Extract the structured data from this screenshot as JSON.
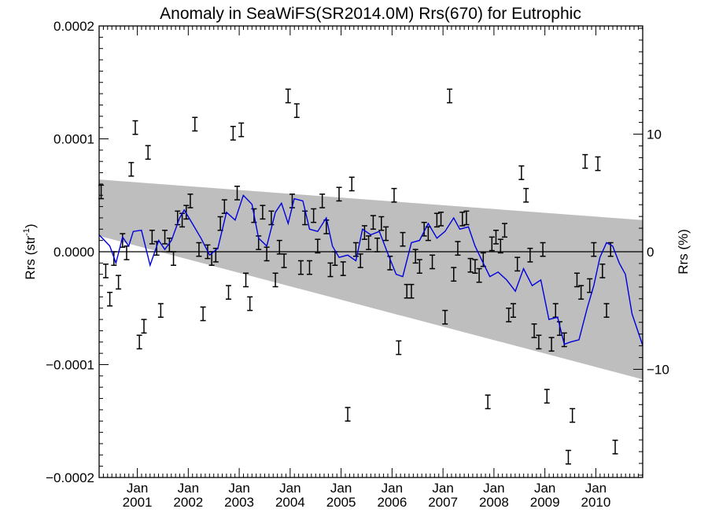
{
  "chart_data": {
    "type": "scatter",
    "title": "Anomaly in SeaWiFS(SR2014.0M) Rrs(670) for Eutrophic",
    "ylabel_left": {
      "base": "Rrs (str",
      "sup": "-1",
      "close": ")"
    },
    "ylabel_right": "Rrs (%)",
    "xlim": [
      2000.25,
      2010.92
    ],
    "ylim": [
      -0.0002,
      0.0002
    ],
    "right_ylim": [
      -19.2,
      19.2
    ],
    "x_ticks": [
      {
        "value": 2001.0,
        "month": "Jan",
        "year": "2001"
      },
      {
        "value": 2002.0,
        "month": "Jan",
        "year": "2002"
      },
      {
        "value": 2003.0,
        "month": "Jan",
        "year": "2003"
      },
      {
        "value": 2004.0,
        "month": "Jan",
        "year": "2004"
      },
      {
        "value": 2005.0,
        "month": "Jan",
        "year": "2005"
      },
      {
        "value": 2006.0,
        "month": "Jan",
        "year": "2006"
      },
      {
        "value": 2007.0,
        "month": "Jan",
        "year": "2007"
      },
      {
        "value": 2008.0,
        "month": "Jan",
        "year": "2008"
      },
      {
        "value": 2009.0,
        "month": "Jan",
        "year": "2009"
      },
      {
        "value": 2010.0,
        "month": "Jan",
        "year": "2010"
      }
    ],
    "y_ticks_left": [
      {
        "value": 0.0002,
        "label": "0.0002"
      },
      {
        "value": 0.0001,
        "label": "0.0001"
      },
      {
        "value": 0.0,
        "label": "0.0000"
      },
      {
        "value": -0.0001,
        "label": "−0.0001"
      },
      {
        "value": -0.0002,
        "label": "−0.0002"
      }
    ],
    "y_ticks_right": [
      {
        "value": 10,
        "label": "10"
      },
      {
        "value": 0,
        "label": "0"
      },
      {
        "value": -10,
        "label": "−10"
      }
    ],
    "zero_line": 0.0,
    "uncertainty_band": {
      "color": "#bebebe",
      "upper": [
        [
          2000.25,
          6.4e-05
        ],
        [
          2010.92,
          2.8e-05
        ]
      ],
      "lower": [
        [
          2000.25,
          1.4e-05
        ],
        [
          2010.92,
          -0.000113
        ]
      ]
    },
    "series": [
      {
        "type": "errorbar",
        "color": "#000000",
        "err": 6e-06,
        "points": [
          [
            2000.29,
            5.3e-05
          ],
          [
            2000.38,
            -1.7e-05
          ],
          [
            2000.46,
            -4.2e-05
          ],
          [
            2000.54,
            -6e-06
          ],
          [
            2000.63,
            -2.7e-05
          ],
          [
            2000.71,
            1e-05
          ],
          [
            2000.79,
            -1e-06
          ],
          [
            2000.88,
            7.3e-05
          ],
          [
            2000.96,
            0.00011
          ],
          [
            2001.04,
            -8e-05
          ],
          [
            2001.13,
            -6.6e-05
          ],
          [
            2001.21,
            8.8e-05
          ],
          [
            2001.29,
            1.3e-05
          ],
          [
            2001.38,
            3e-06
          ],
          [
            2001.46,
            -5.2e-05
          ],
          [
            2001.54,
            1.3e-05
          ],
          [
            2001.63,
            6e-06
          ],
          [
            2001.71,
            -6e-06
          ],
          [
            2001.79,
            3e-05
          ],
          [
            2001.88,
            2.8e-05
          ],
          [
            2001.96,
            3.5e-05
          ],
          [
            2002.04,
            4.5e-05
          ],
          [
            2002.13,
            0.000113
          ],
          [
            2002.21,
            2e-06
          ],
          [
            2002.29,
            -5.5e-05
          ],
          [
            2002.38,
            0.0
          ],
          [
            2002.46,
            -6e-06
          ],
          [
            2002.54,
            -3e-06
          ],
          [
            2002.63,
            2.5e-05
          ],
          [
            2002.71,
            4e-05
          ],
          [
            2002.79,
            -3.6e-05
          ],
          [
            2002.88,
            0.000105
          ],
          [
            2002.96,
            5.2e-05
          ],
          [
            2003.04,
            0.000108
          ],
          [
            2003.13,
            -2.5e-05
          ],
          [
            2003.21,
            -4.6e-05
          ],
          [
            2003.29,
            3.2e-05
          ],
          [
            2003.38,
            8e-06
          ],
          [
            2003.46,
            3.5e-05
          ],
          [
            2003.54,
            -2e-06
          ],
          [
            2003.63,
            3e-05
          ],
          [
            2003.71,
            -2.5e-05
          ],
          [
            2003.79,
            4e-06
          ],
          [
            2003.88,
            -8e-06
          ],
          [
            2003.96,
            0.000138
          ],
          [
            2004.04,
            4.5e-05
          ],
          [
            2004.13,
            0.000125
          ],
          [
            2004.21,
            -1.4e-05
          ],
          [
            2004.29,
            3e-05
          ],
          [
            2004.38,
            -1.4e-05
          ],
          [
            2004.46,
            3.2e-05
          ],
          [
            2004.54,
            5e-06
          ],
          [
            2004.63,
            4.5e-05
          ],
          [
            2004.71,
            2.2e-05
          ],
          [
            2004.79,
            -1.6e-05
          ],
          [
            2004.88,
            -6e-06
          ],
          [
            2004.96,
            5.1e-05
          ],
          [
            2005.04,
            -1.5e-05
          ],
          [
            2005.13,
            -0.000144
          ],
          [
            2005.21,
            6e-05
          ],
          [
            2005.29,
            2e-06
          ],
          [
            2005.38,
            -8e-06
          ],
          [
            2005.46,
            1.7e-05
          ],
          [
            2005.54,
            8e-06
          ],
          [
            2005.63,
            2.6e-05
          ],
          [
            2005.71,
            6e-06
          ],
          [
            2005.79,
            2.5e-05
          ],
          [
            2005.88,
            1.6e-05
          ],
          [
            2005.96,
            -1e-05
          ],
          [
            2006.04,
            5e-05
          ],
          [
            2006.13,
            -8.5e-05
          ],
          [
            2006.21,
            1.1e-05
          ],
          [
            2006.29,
            -3.5e-05
          ],
          [
            2006.38,
            -3.5e-05
          ],
          [
            2006.46,
            -4e-06
          ],
          [
            2006.54,
            -1.3e-05
          ],
          [
            2006.63,
            2e-05
          ],
          [
            2006.71,
            1.6e-05
          ],
          [
            2006.79,
            -9e-06
          ],
          [
            2006.88,
            2.8e-05
          ],
          [
            2006.96,
            2.9e-05
          ],
          [
            2007.04,
            -5.8e-05
          ],
          [
            2007.13,
            0.000138
          ],
          [
            2007.21,
            -2e-05
          ],
          [
            2007.29,
            3e-06
          ],
          [
            2007.38,
            2.9e-05
          ],
          [
            2007.46,
            3e-05
          ],
          [
            2007.54,
            -1.2e-05
          ],
          [
            2007.63,
            -1.3e-05
          ],
          [
            2007.71,
            -2.1e-05
          ],
          [
            2007.79,
            -7e-06
          ],
          [
            2007.88,
            -0.000133
          ],
          [
            2007.96,
            7e-06
          ],
          [
            2008.04,
            1.3e-05
          ],
          [
            2008.13,
            5e-06
          ],
          [
            2008.21,
            1.9e-05
          ],
          [
            2008.29,
            -5.6e-05
          ],
          [
            2008.38,
            -5.2e-05
          ],
          [
            2008.46,
            -1.1e-05
          ],
          [
            2008.54,
            7e-05
          ],
          [
            2008.63,
            5e-05
          ],
          [
            2008.71,
            -3e-06
          ],
          [
            2008.79,
            -7e-05
          ],
          [
            2008.88,
            -8e-05
          ],
          [
            2008.96,
            2e-06
          ],
          [
            2009.04,
            -0.000128
          ],
          [
            2009.13,
            -8.2e-05
          ],
          [
            2009.21,
            -5.2e-05
          ],
          [
            2009.29,
            -6.8e-05
          ],
          [
            2009.38,
            -7.8e-05
          ],
          [
            2009.46,
            -0.000182
          ],
          [
            2009.54,
            -0.000145
          ],
          [
            2009.63,
            -2.5e-05
          ],
          [
            2009.71,
            -3.6e-05
          ],
          [
            2009.79,
            8e-05
          ],
          [
            2009.88,
            -3e-05
          ],
          [
            2009.96,
            2e-06
          ],
          [
            2010.04,
            7.8e-05
          ],
          [
            2010.13,
            -1.7e-05
          ],
          [
            2010.21,
            -5.2e-05
          ],
          [
            2010.29,
            2e-06
          ],
          [
            2010.38,
            -0.000173
          ]
        ]
      },
      {
        "type": "line",
        "color": "#0000dd",
        "points": [
          [
            2000.25,
            1.5e-05
          ],
          [
            2000.46,
            5e-06
          ],
          [
            2000.58,
            -1e-05
          ],
          [
            2000.71,
            1.3e-05
          ],
          [
            2000.83,
            5e-06
          ],
          [
            2000.92,
            1.8e-05
          ],
          [
            2001.08,
            1.9e-05
          ],
          [
            2001.25,
            -1.2e-05
          ],
          [
            2001.42,
            1e-05
          ],
          [
            2001.54,
            2e-06
          ],
          [
            2001.67,
            1e-05
          ],
          [
            2001.83,
            3e-05
          ],
          [
            2001.92,
            3.7e-05
          ],
          [
            2002.08,
            2.5e-05
          ],
          [
            2002.25,
            1.2e-05
          ],
          [
            2002.42,
            -3e-06
          ],
          [
            2002.58,
            3e-06
          ],
          [
            2002.75,
            3.5e-05
          ],
          [
            2002.92,
            2.8e-05
          ],
          [
            2003.08,
            5e-05
          ],
          [
            2003.25,
            4.2e-05
          ],
          [
            2003.38,
            1.2e-05
          ],
          [
            2003.54,
            5e-06
          ],
          [
            2003.71,
            3.5e-05
          ],
          [
            2003.83,
            4.3e-05
          ],
          [
            2003.96,
            2.5e-05
          ],
          [
            2004.08,
            4.7e-05
          ],
          [
            2004.25,
            4.5e-05
          ],
          [
            2004.38,
            2e-05
          ],
          [
            2004.54,
            1.8e-05
          ],
          [
            2004.71,
            3e-05
          ],
          [
            2004.83,
            5e-06
          ],
          [
            2004.96,
            -5e-06
          ],
          [
            2005.13,
            -3e-06
          ],
          [
            2005.29,
            -8e-06
          ],
          [
            2005.42,
            2e-05
          ],
          [
            2005.58,
            1.5e-05
          ],
          [
            2005.75,
            1.8e-05
          ],
          [
            2005.92,
            -2e-06
          ],
          [
            2006.08,
            -2e-05
          ],
          [
            2006.21,
            -2.2e-05
          ],
          [
            2006.38,
            8e-06
          ],
          [
            2006.54,
            1e-05
          ],
          [
            2006.71,
            2.5e-05
          ],
          [
            2006.88,
            1.2e-05
          ],
          [
            2007.04,
            1.8e-05
          ],
          [
            2007.21,
            3e-05
          ],
          [
            2007.33,
            2e-05
          ],
          [
            2007.5,
            2.2e-05
          ],
          [
            2007.63,
            5e-06
          ],
          [
            2007.79,
            -1e-05
          ],
          [
            2007.92,
            -2.2e-05
          ],
          [
            2008.08,
            -1.8e-05
          ],
          [
            2008.25,
            -2.5e-05
          ],
          [
            2008.42,
            -3.5e-05
          ],
          [
            2008.58,
            -1.5e-05
          ],
          [
            2008.75,
            -3e-05
          ],
          [
            2008.92,
            -2.5e-05
          ],
          [
            2009.08,
            -6e-05
          ],
          [
            2009.25,
            -5.8e-05
          ],
          [
            2009.38,
            -8.2e-05
          ],
          [
            2009.5,
            -8e-05
          ],
          [
            2009.67,
            -7.8e-05
          ],
          [
            2009.83,
            -5e-05
          ],
          [
            2009.96,
            -3e-05
          ],
          [
            2010.08,
            -5e-06
          ],
          [
            2010.21,
            8e-06
          ],
          [
            2010.33,
            5e-06
          ],
          [
            2010.46,
            -1e-05
          ],
          [
            2010.58,
            -2e-05
          ],
          [
            2010.71,
            -5.5e-05
          ],
          [
            2010.92,
            -8.3e-05
          ]
        ]
      }
    ]
  }
}
